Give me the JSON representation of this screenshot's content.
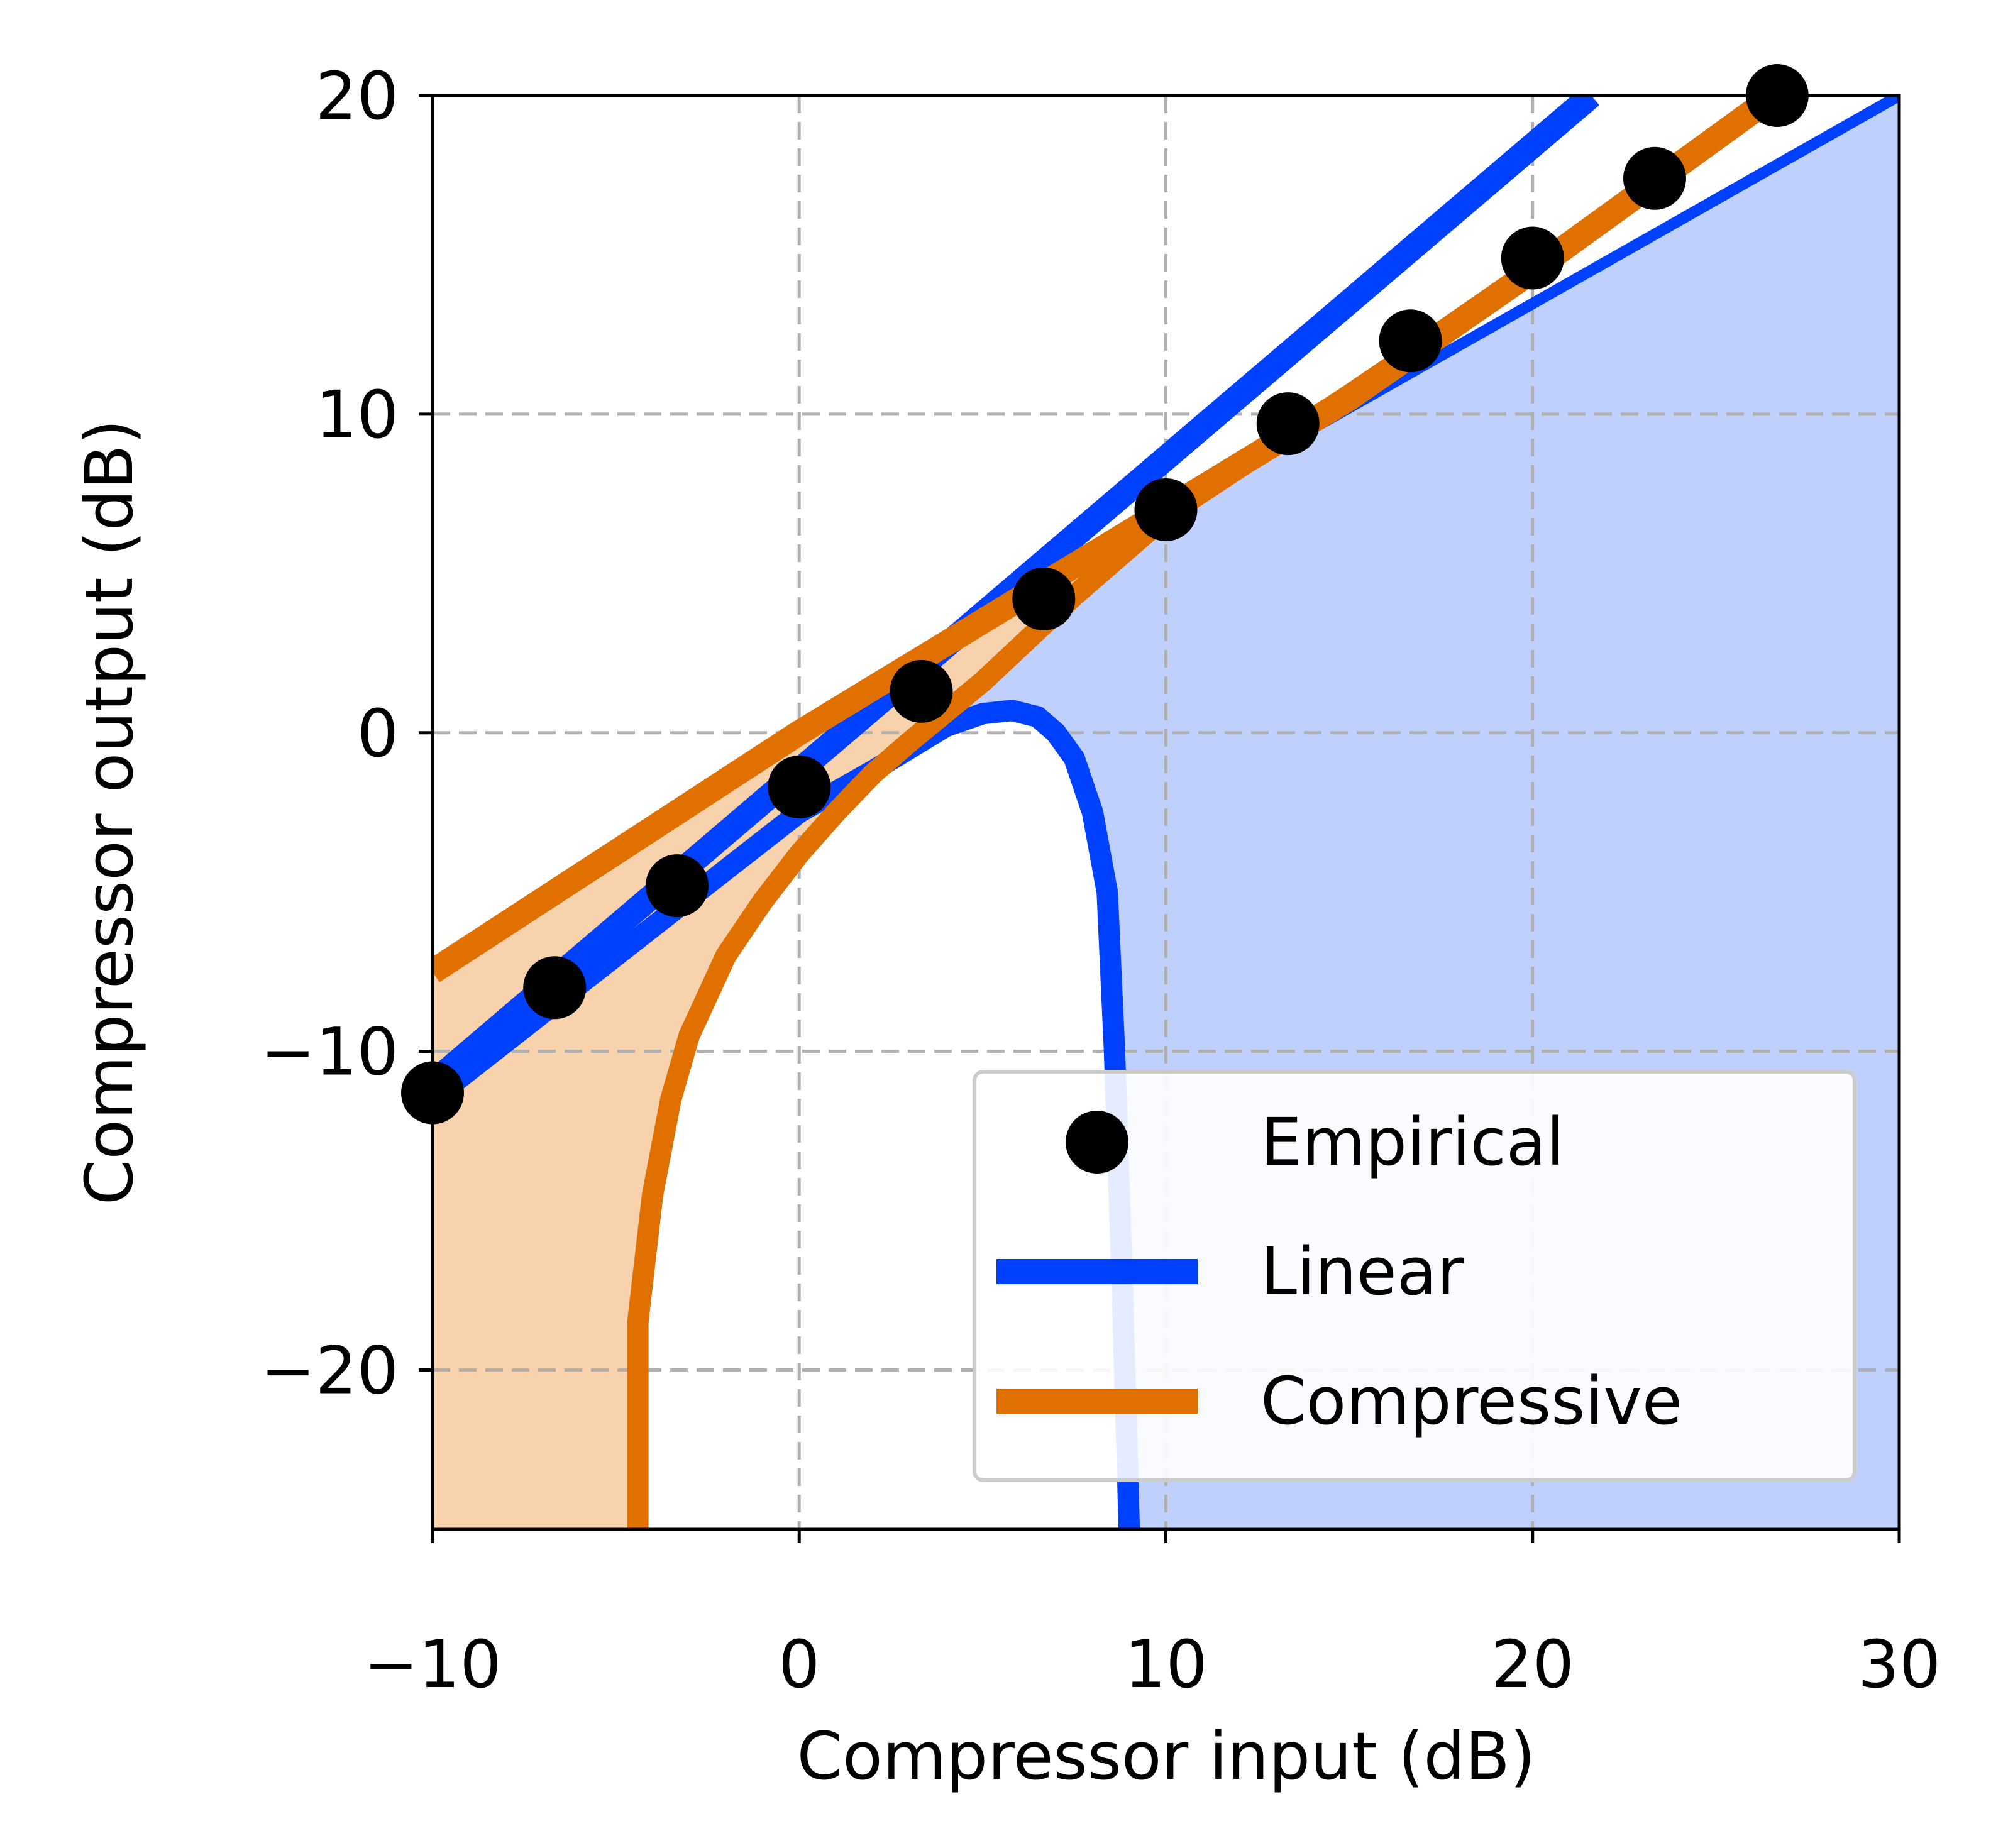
{
  "chart_data": {
    "type": "line",
    "title": "",
    "xlabel": "Compressor input (dB)",
    "ylabel": "Compressor output (dB)",
    "xlim": [
      -10,
      30
    ],
    "ylim": [
      -25,
      20
    ],
    "xticks": [
      -10,
      0,
      10,
      20,
      30
    ],
    "yticks": [
      -20,
      -10,
      0,
      10,
      20
    ],
    "xtick_labels": [
      "−10",
      "0",
      "10",
      "20",
      "30"
    ],
    "ytick_labels": [
      "−20",
      "−10",
      "0",
      "10",
      "20"
    ],
    "grid": true,
    "legend": {
      "position": "lower-right",
      "entries": [
        "Empirical",
        "Linear",
        "Compressive"
      ]
    },
    "colors": {
      "empirical": "#000000",
      "linear": "#0040ff",
      "compressive": "#e07000",
      "linear_band": "#bfd0fc",
      "compressive_band": "#f7d2ac",
      "grid": "#b0b0b0"
    },
    "series": [
      {
        "name": "Empirical",
        "style": "markers",
        "x": [
          -10,
          -6.67,
          -3.33,
          0,
          3.33,
          6.67,
          10,
          13.33,
          16.67,
          20,
          23.33,
          26.67
        ],
        "y": [
          -11.3,
          -8.0,
          -4.8,
          -1.7,
          1.3,
          4.2,
          7.0,
          9.7,
          12.3,
          14.9,
          17.4,
          20.0
        ]
      },
      {
        "name": "Linear",
        "style": "line",
        "x": [
          -10,
          21.6
        ],
        "y": [
          -11.0,
          20.0
        ]
      },
      {
        "name": "Compressive",
        "style": "line",
        "x": [
          -10,
          0,
          5,
          10,
          15,
          20,
          26.6
        ],
        "y": [
          -7.5,
          0.0,
          3.5,
          7.0,
          10.5,
          14.5,
          20.0
        ]
      }
    ],
    "bands": [
      {
        "name": "Linear",
        "x": [
          -10,
          5.5,
          30
        ],
        "upper": [
          -11.0,
          4.0,
          20.0
        ],
        "lower_curve": {
          "x": [
            -10,
            0,
            2,
            3,
            4,
            5,
            5.8,
            6.5,
            7,
            7.5,
            8,
            8.4,
            8.6,
            8.8,
            9.0
          ],
          "y": [
            -11.5,
            -2.5,
            -1.2,
            -0.5,
            0.2,
            0.6,
            0.7,
            0.5,
            0.0,
            -0.8,
            -2.5,
            -5.0,
            -10.0,
            -17.0,
            -25.0
          ]
        }
      },
      {
        "name": "Compressive",
        "upper_curve": {
          "x": [
            -10,
            0,
            5,
            10,
            20,
            26.6
          ],
          "y": [
            -7.5,
            0.0,
            3.5,
            7.0,
            14.5,
            20.0
          ]
        },
        "lower_curve": {
          "x": [
            -4.4,
            -4.4,
            -4.0,
            -3.5,
            -3.0,
            -2.0,
            -1.0,
            0.0,
            1.0,
            2.0,
            3.0,
            5.0,
            7.5,
            10.0,
            15.0,
            20.0,
            26.6
          ],
          "y": [
            -25.0,
            -18.5,
            -14.5,
            -11.5,
            -9.5,
            -7.0,
            -5.3,
            -3.8,
            -2.5,
            -1.3,
            -0.3,
            1.6,
            4.3,
            6.8,
            10.6,
            14.5,
            20.0
          ]
        }
      }
    ]
  }
}
